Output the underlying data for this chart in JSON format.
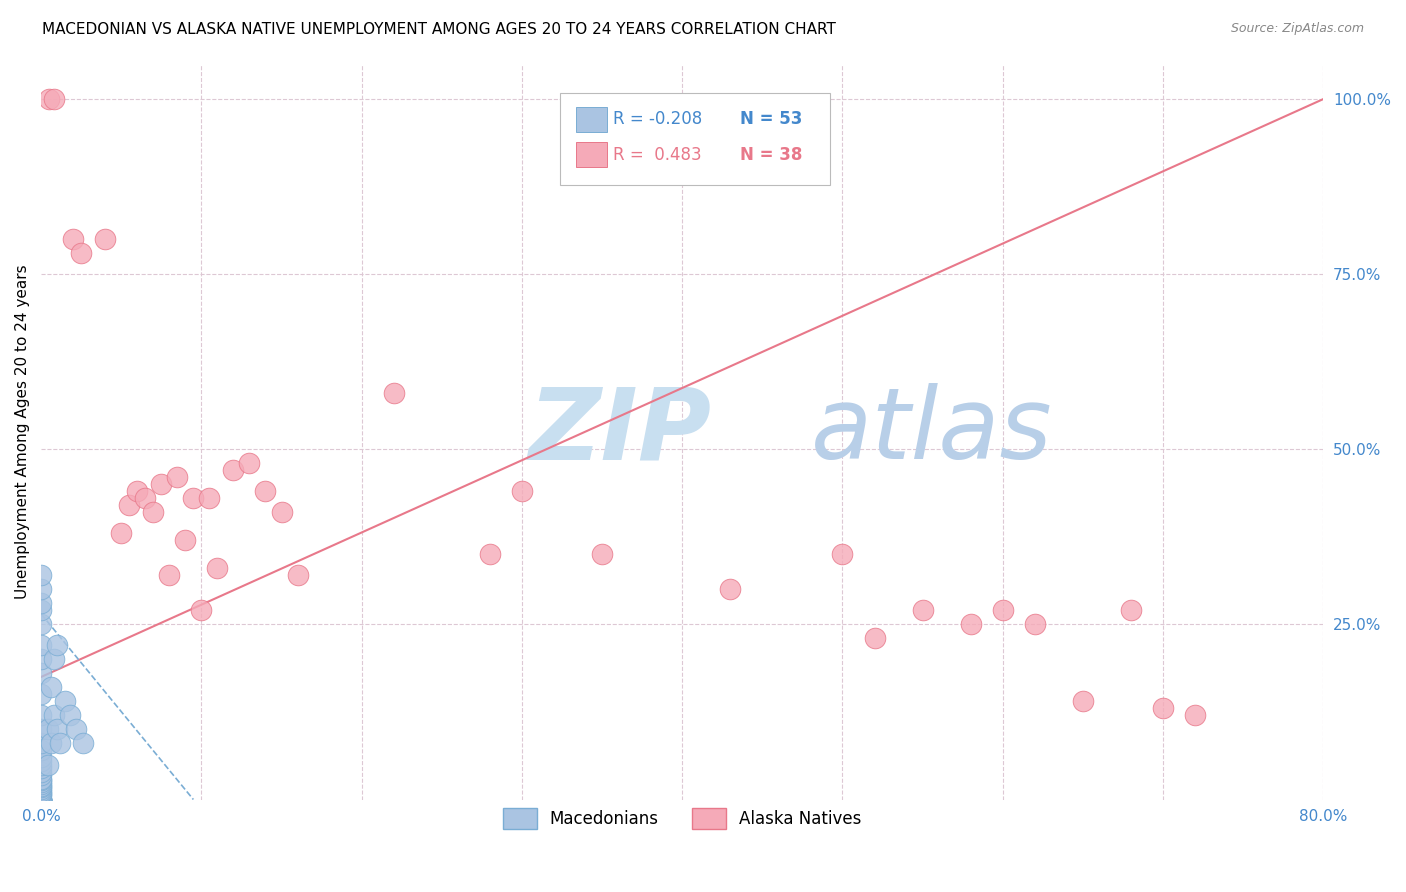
{
  "title": "MACEDONIAN VS ALASKA NATIVE UNEMPLOYMENT AMONG AGES 20 TO 24 YEARS CORRELATION CHART",
  "source": "Source: ZipAtlas.com",
  "ylabel": "Unemployment Among Ages 20 to 24 years",
  "xlim": [
    0.0,
    0.8
  ],
  "ylim": [
    0.0,
    1.05
  ],
  "xticks": [
    0.0,
    0.1,
    0.2,
    0.3,
    0.4,
    0.5,
    0.6,
    0.7,
    0.8
  ],
  "xticklabels": [
    "0.0%",
    "",
    "",
    "",
    "",
    "",
    "",
    "",
    "80.0%"
  ],
  "yticks_right": [
    0.0,
    0.25,
    0.5,
    0.75,
    1.0
  ],
  "yticklabels_right": [
    "",
    "25.0%",
    "50.0%",
    "75.0%",
    "100.0%"
  ],
  "macedonian_color": "#aac4e2",
  "macedonian_edge": "#7aadd4",
  "alaska_color": "#f5aab8",
  "alaska_edge": "#e8788a",
  "trend_blue_color": "#7aadd4",
  "trend_pink_color": "#e8788a",
  "watermark_zip_color": "#c8dff0",
  "watermark_atlas_color": "#b8cfe8",
  "watermark_text_zip": "ZIP",
  "watermark_text_atlas": "atlas",
  "legend_R_mac": "-0.208",
  "legend_N_mac": "53",
  "legend_R_alaska": "0.483",
  "legend_N_alaska": "38",
  "macedonian_x": [
    0.0,
    0.0,
    0.0,
    0.0,
    0.0,
    0.0,
    0.0,
    0.0,
    0.0,
    0.0,
    0.0,
    0.0,
    0.0,
    0.0,
    0.0,
    0.0,
    0.0,
    0.0,
    0.0,
    0.0,
    0.0,
    0.0,
    0.0,
    0.0,
    0.0,
    0.0,
    0.0,
    0.0,
    0.0,
    0.0,
    0.0,
    0.0,
    0.0,
    0.0,
    0.0,
    0.0,
    0.0,
    0.0,
    0.0,
    0.0,
    0.004,
    0.004,
    0.006,
    0.006,
    0.008,
    0.008,
    0.01,
    0.01,
    0.012,
    0.015,
    0.018,
    0.022,
    0.026
  ],
  "macedonian_y": [
    0.0,
    0.0,
    0.0,
    0.0,
    0.0,
    0.0,
    0.0,
    0.0,
    0.0,
    0.0,
    0.005,
    0.008,
    0.01,
    0.012,
    0.015,
    0.018,
    0.02,
    0.022,
    0.025,
    0.028,
    0.03,
    0.035,
    0.04,
    0.045,
    0.05,
    0.055,
    0.06,
    0.07,
    0.08,
    0.1,
    0.12,
    0.15,
    0.18,
    0.2,
    0.22,
    0.25,
    0.27,
    0.28,
    0.3,
    0.32,
    0.05,
    0.1,
    0.08,
    0.16,
    0.12,
    0.2,
    0.1,
    0.22,
    0.08,
    0.14,
    0.12,
    0.1,
    0.08
  ],
  "alaska_x": [
    0.005,
    0.008,
    0.02,
    0.025,
    0.04,
    0.05,
    0.055,
    0.06,
    0.065,
    0.07,
    0.075,
    0.08,
    0.085,
    0.09,
    0.095,
    0.1,
    0.105,
    0.11,
    0.12,
    0.13,
    0.14,
    0.15,
    0.16,
    0.22,
    0.28,
    0.3,
    0.35,
    0.43,
    0.5,
    0.52,
    0.55,
    0.58,
    0.6,
    0.62,
    0.65,
    0.68,
    0.7,
    0.72
  ],
  "alaska_y": [
    1.0,
    1.0,
    0.8,
    0.78,
    0.8,
    0.38,
    0.42,
    0.44,
    0.43,
    0.41,
    0.45,
    0.32,
    0.46,
    0.37,
    0.43,
    0.27,
    0.43,
    0.33,
    0.47,
    0.48,
    0.44,
    0.41,
    0.32,
    0.58,
    0.35,
    0.44,
    0.35,
    0.3,
    0.35,
    0.23,
    0.27,
    0.25,
    0.27,
    0.25,
    0.14,
    0.27,
    0.13,
    0.12
  ],
  "mac_trend_x": [
    0.0,
    0.095
  ],
  "mac_trend_y": [
    0.265,
    0.0
  ],
  "alaska_trend_x": [
    0.0,
    0.8
  ],
  "alaska_trend_y": [
    0.175,
    1.0
  ],
  "background_color": "#ffffff",
  "grid_color": "#ddc8d4",
  "title_fontsize": 11,
  "axis_label_fontsize": 11,
  "tick_fontsize": 11,
  "legend_fontsize": 12,
  "scatter_size": 220
}
